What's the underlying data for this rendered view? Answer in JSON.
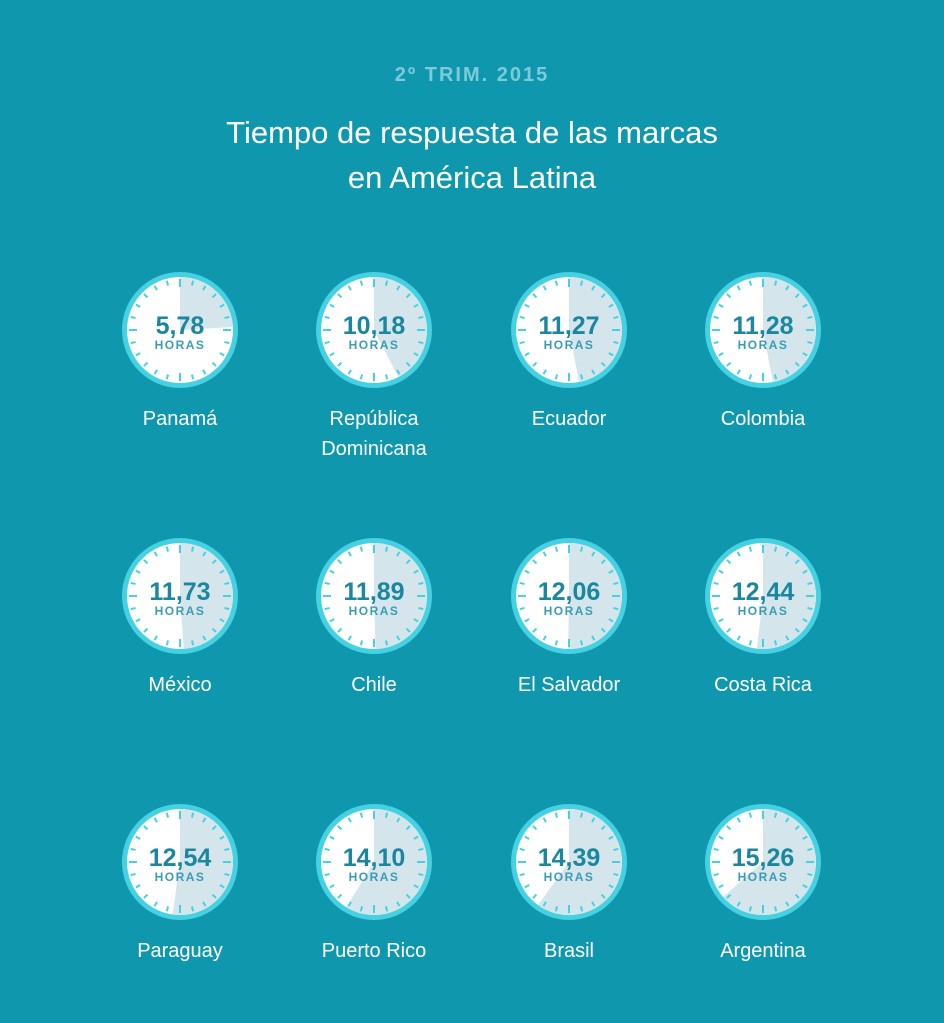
{
  "header": {
    "subtitle": "2º TRIM. 2015",
    "title_lines": [
      "Tiempo de respuesta de las marcas",
      "en América Latina"
    ]
  },
  "colors": {
    "background": "#0f97ae",
    "ring": "#45d1e2",
    "face": "#ffffff",
    "fill": "#d4e6ec",
    "number": "#1a86a0",
    "unit": "#3a9cb3"
  },
  "chart_data": {
    "type": "clock-grid",
    "unit_label": "HORAS",
    "items": [
      {
        "country": "Panamá",
        "value": "5,78",
        "hours": 5.78
      },
      {
        "country": "República Dominicana",
        "value": "10,18",
        "hours": 10.18
      },
      {
        "country": "Ecuador",
        "value": "11,27",
        "hours": 11.27
      },
      {
        "country": "Colombia",
        "value": "11,28",
        "hours": 11.28
      },
      {
        "country": "México",
        "value": "11,73",
        "hours": 11.73
      },
      {
        "country": "Chile",
        "value": "11,89",
        "hours": 11.89
      },
      {
        "country": "El Salvador",
        "value": "12,06",
        "hours": 12.06
      },
      {
        "country": "Costa Rica",
        "value": "12,44",
        "hours": 12.44
      },
      {
        "country": "Paraguay",
        "value": "12,54",
        "hours": 12.54
      },
      {
        "country": "Puerto Rico",
        "value": "14,10",
        "hours": 14.1
      },
      {
        "country": "Brasil",
        "value": "14,39",
        "hours": 14.39
      },
      {
        "country": "Argentina",
        "value": "15,26",
        "hours": 15.26
      }
    ]
  }
}
